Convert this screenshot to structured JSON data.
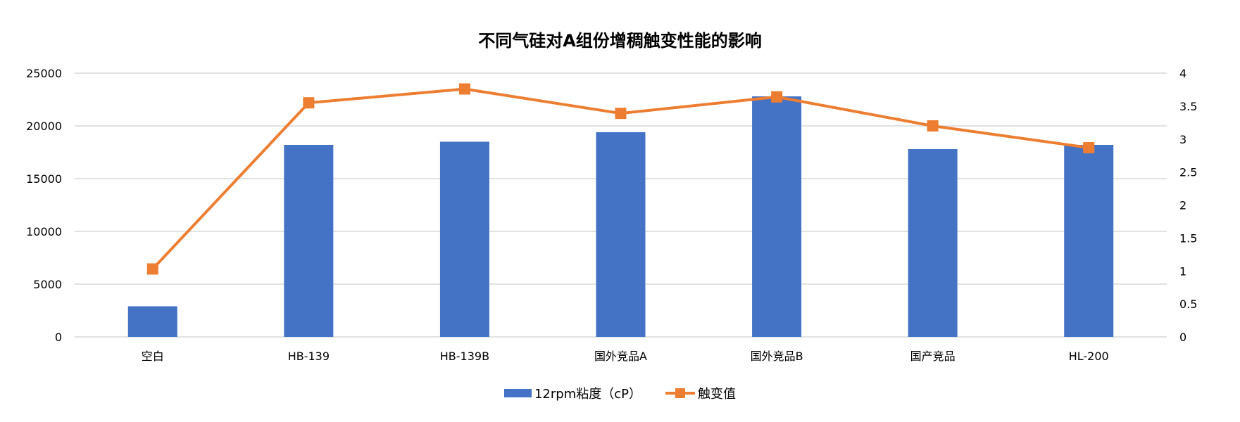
{
  "chart_data": {
    "type": "bar+line",
    "title": "不同气硅对A组份增稠触变性能的影响",
    "categories": [
      "空白",
      "HB-139",
      "HB-139B",
      "国外竞品A",
      "国外竞品B",
      "国产竞品",
      "HL-200"
    ],
    "series": [
      {
        "name": "12rpm粘度（cP）",
        "type": "bar",
        "axis": "left",
        "color": "#4472c4",
        "values": [
          2900,
          18200,
          18500,
          19400,
          22800,
          17800,
          18200
        ]
      },
      {
        "name": "触变值",
        "type": "line",
        "axis": "right",
        "color": "#ed7d31",
        "marker": "square",
        "values": [
          1.03,
          3.55,
          3.76,
          3.39,
          3.64,
          3.2,
          2.87
        ]
      }
    ],
    "y_left": {
      "min": 0,
      "max": 25000,
      "ticks": [
        "0",
        "5000",
        "10000",
        "15000",
        "20000",
        "25000"
      ]
    },
    "y_right": {
      "min": 0,
      "max": 4,
      "ticks": [
        "0",
        "0.5",
        "1",
        "1.5",
        "2",
        "2.5",
        "3",
        "3.5",
        "4"
      ]
    },
    "xlabel": "",
    "ylabel": "",
    "grid": true,
    "legend_position": "bottom"
  },
  "legend": {
    "bar_label": "12rpm粘度（cP）",
    "line_label": "触变值"
  }
}
